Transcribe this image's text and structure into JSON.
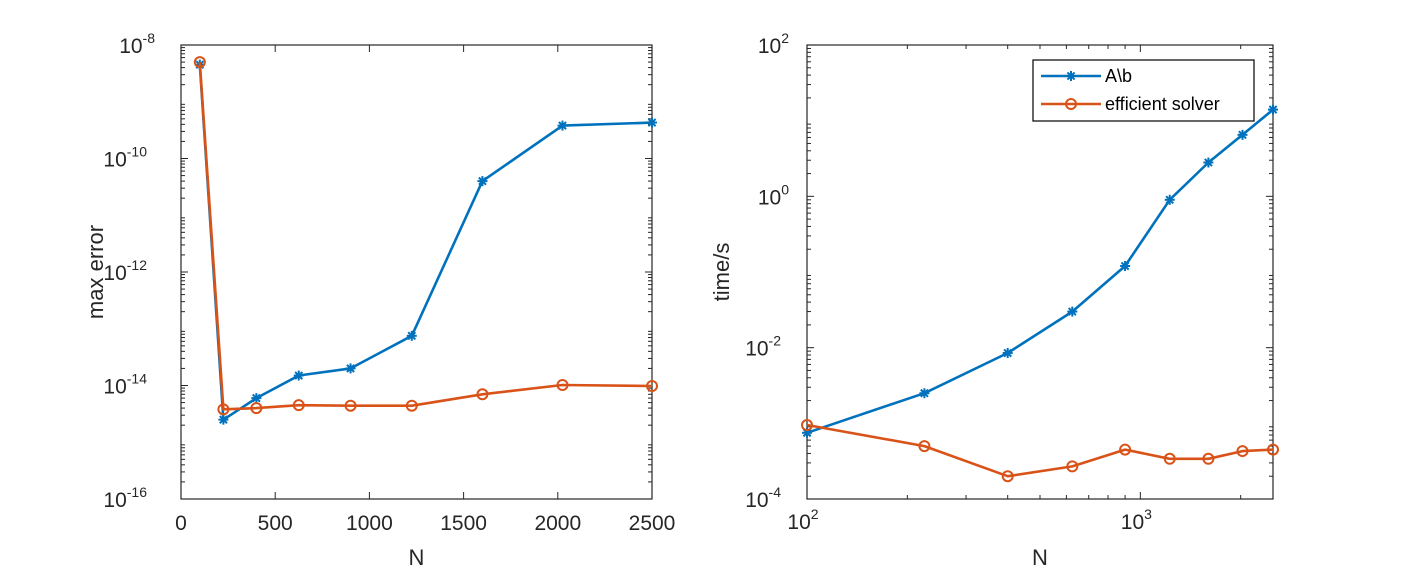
{
  "colors": {
    "series_blue": "#0072BD",
    "series_orange": "#D95319",
    "axes": "#262626",
    "background": "#FFFFFF"
  },
  "chart_data": [
    {
      "type": "line",
      "title": "",
      "xlabel": "N",
      "ylabel": "max error",
      "xscale": "linear",
      "yscale": "log",
      "xlim": [
        0,
        2500
      ],
      "ylim": [
        1e-16,
        1e-08
      ],
      "xticks": [
        0,
        500,
        1000,
        1500,
        2000,
        2500
      ],
      "xtick_labels": [
        "0",
        "500",
        "1000",
        "1500",
        "2000",
        "2500"
      ],
      "yticks": [
        {
          "value": 1e-16,
          "base": "10",
          "exp": "-16"
        },
        {
          "value": 1e-14,
          "base": "10",
          "exp": "-14"
        },
        {
          "value": 1e-12,
          "base": "10",
          "exp": "-12"
        },
        {
          "value": 1e-10,
          "base": "10",
          "exp": "-10"
        },
        {
          "value": 1e-08,
          "base": "10",
          "exp": "-8"
        }
      ],
      "grid": false,
      "legend": null,
      "series": [
        {
          "marker": "asterisk",
          "color": "#0072BD",
          "x": [
            100,
            225,
            400,
            625,
            900,
            1225,
            1600,
            2025,
            2500
          ],
          "y": [
            4.5e-09,
            2.5e-15,
            6e-15,
            1.5e-14,
            2e-14,
            7.5e-14,
            4e-11,
            3.8e-10,
            4.3e-10
          ]
        },
        {
          "marker": "circle",
          "color": "#D95319",
          "x": [
            100,
            225,
            400,
            625,
            900,
            1225,
            1600,
            2025,
            2500
          ],
          "y": [
            5e-09,
            3.8e-15,
            4e-15,
            4.5e-15,
            4.4e-15,
            4.4e-15,
            7e-15,
            1.02e-14,
            9.8e-15
          ]
        }
      ]
    },
    {
      "type": "line",
      "title": "",
      "xlabel": "N",
      "ylabel": "time/s",
      "xscale": "log",
      "yscale": "log",
      "xlim": [
        100,
        2500
      ],
      "ylim": [
        0.0001,
        100
      ],
      "xticks": [
        {
          "value": 100,
          "base": "10",
          "exp": "2"
        },
        {
          "value": 1000,
          "base": "10",
          "exp": "3"
        }
      ],
      "yticks": [
        {
          "value": 0.0001,
          "base": "10",
          "exp": "-4"
        },
        {
          "value": 0.01,
          "base": "10",
          "exp": "-2"
        },
        {
          "value": 1,
          "base": "10",
          "exp": "0"
        },
        {
          "value": 100,
          "base": "10",
          "exp": "2"
        }
      ],
      "grid": false,
      "legend": "top-right",
      "series": [
        {
          "name": "A\\b",
          "marker": "asterisk",
          "color": "#0072BD",
          "x": [
            100,
            225,
            400,
            625,
            900,
            1225,
            1600,
            2025,
            2500
          ],
          "y": [
            0.00075,
            0.0025,
            0.0085,
            0.03,
            0.12,
            0.9,
            2.8,
            6.5,
            14
          ]
        },
        {
          "name": "efficient solver",
          "marker": "circle",
          "color": "#D95319",
          "x": [
            100,
            225,
            400,
            625,
            900,
            1225,
            1600,
            2025,
            2500
          ],
          "y": [
            0.00095,
            0.0005,
            0.0002,
            0.00027,
            0.00045,
            0.00034,
            0.00034,
            0.00043,
            0.00045
          ]
        }
      ]
    }
  ]
}
